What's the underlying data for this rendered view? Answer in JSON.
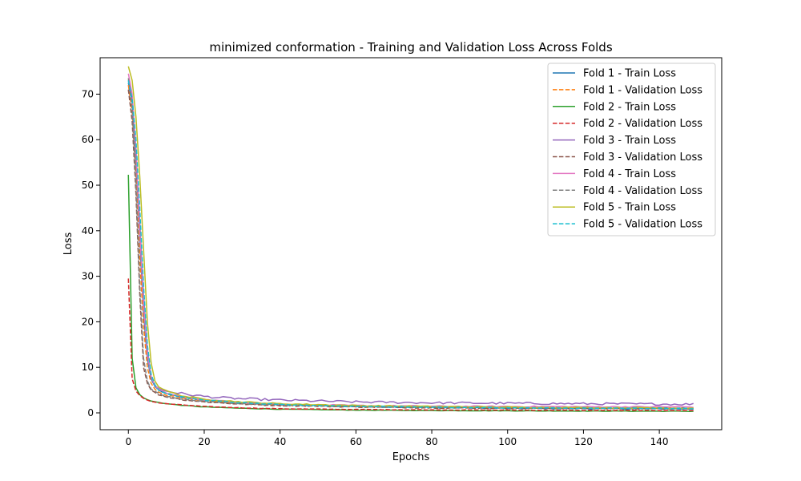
{
  "chart_data": {
    "type": "line",
    "title": "minimized conformation - Training and Validation Loss Across Folds",
    "xlabel": "Epochs",
    "ylabel": "Loss",
    "xlim": [
      -7.45,
      156.45
    ],
    "ylim": [
      -3.7,
      78.0
    ],
    "xticks": [
      0,
      20,
      40,
      60,
      80,
      100,
      120,
      140
    ],
    "yticks": [
      0,
      10,
      20,
      30,
      40,
      50,
      60,
      70
    ],
    "grid": false,
    "legend_position": "top-right",
    "epochs": 150,
    "series": [
      {
        "name": "Fold 1 - Train Loss",
        "color": "#1f77b4",
        "dash": false,
        "keypoints": [
          [
            0,
            72.5
          ],
          [
            1,
            68
          ],
          [
            2,
            55
          ],
          [
            3,
            38
          ],
          [
            4,
            22
          ],
          [
            5,
            12
          ],
          [
            6,
            7.5
          ],
          [
            7,
            5.8
          ],
          [
            8,
            5.0
          ],
          [
            10,
            4.2
          ],
          [
            15,
            3.3
          ],
          [
            20,
            2.8
          ],
          [
            30,
            2.2
          ],
          [
            40,
            1.8
          ],
          [
            60,
            1.4
          ],
          [
            80,
            1.2
          ],
          [
            100,
            1.0
          ],
          [
            120,
            0.95
          ],
          [
            149,
            0.85
          ]
        ],
        "noise": 0.12
      },
      {
        "name": "Fold 1 - Validation Loss",
        "color": "#ff7f0e",
        "dash": true,
        "keypoints": [
          [
            0,
            72
          ],
          [
            1,
            66
          ],
          [
            2,
            52
          ],
          [
            3,
            34
          ],
          [
            4,
            19
          ],
          [
            5,
            10
          ],
          [
            6,
            6.5
          ],
          [
            7,
            5.2
          ],
          [
            8,
            4.6
          ],
          [
            10,
            3.9
          ],
          [
            15,
            3.1
          ],
          [
            20,
            2.7
          ],
          [
            30,
            2.1
          ],
          [
            40,
            1.8
          ],
          [
            60,
            1.5
          ],
          [
            80,
            1.3
          ],
          [
            100,
            1.2
          ],
          [
            120,
            1.1
          ],
          [
            149,
            1.0
          ]
        ],
        "noise": 0.1
      },
      {
        "name": "Fold 2 - Train Loss",
        "color": "#2ca02c",
        "dash": false,
        "keypoints": [
          [
            0,
            52.3
          ],
          [
            1,
            12
          ],
          [
            2,
            5.5
          ],
          [
            3,
            4.0
          ],
          [
            4,
            3.3
          ],
          [
            5,
            2.9
          ],
          [
            6,
            2.6
          ],
          [
            8,
            2.3
          ],
          [
            10,
            2.0
          ],
          [
            15,
            1.6
          ],
          [
            20,
            1.3
          ],
          [
            30,
            1.0
          ],
          [
            40,
            0.8
          ],
          [
            60,
            0.6
          ],
          [
            80,
            0.5
          ],
          [
            100,
            0.45
          ],
          [
            120,
            0.4
          ],
          [
            149,
            0.35
          ]
        ],
        "noise": 0.05
      },
      {
        "name": "Fold 2 - Validation Loss",
        "color": "#d62728",
        "dash": true,
        "keypoints": [
          [
            0,
            29.5
          ],
          [
            1,
            7.5
          ],
          [
            2,
            4.8
          ],
          [
            3,
            3.8
          ],
          [
            4,
            3.2
          ],
          [
            5,
            2.8
          ],
          [
            6,
            2.5
          ],
          [
            8,
            2.2
          ],
          [
            10,
            2.0
          ],
          [
            15,
            1.7
          ],
          [
            20,
            1.4
          ],
          [
            30,
            1.1
          ],
          [
            40,
            0.9
          ],
          [
            60,
            0.75
          ],
          [
            80,
            0.65
          ],
          [
            100,
            0.6
          ],
          [
            120,
            0.55
          ],
          [
            149,
            0.5
          ]
        ],
        "noise": 0.05
      },
      {
        "name": "Fold 3 - Train Loss",
        "color": "#9467bd",
        "dash": false,
        "keypoints": [
          [
            0,
            73
          ],
          [
            1,
            69
          ],
          [
            2,
            58
          ],
          [
            3,
            42
          ],
          [
            4,
            26
          ],
          [
            5,
            14
          ],
          [
            6,
            8
          ],
          [
            7,
            6
          ],
          [
            8,
            5.3
          ],
          [
            10,
            4.8
          ],
          [
            15,
            4.1
          ],
          [
            20,
            3.6
          ],
          [
            25,
            3.3
          ],
          [
            30,
            3.1
          ],
          [
            40,
            2.8
          ],
          [
            60,
            2.4
          ],
          [
            80,
            2.2
          ],
          [
            100,
            2.1
          ],
          [
            120,
            2.0
          ],
          [
            149,
            1.9
          ]
        ],
        "noise": 0.22
      },
      {
        "name": "Fold 3 - Validation Loss",
        "color": "#8c564b",
        "dash": true,
        "keypoints": [
          [
            0,
            71
          ],
          [
            1,
            64
          ],
          [
            2,
            48
          ],
          [
            3,
            26
          ],
          [
            4,
            10
          ],
          [
            5,
            6.5
          ],
          [
            6,
            5.0
          ],
          [
            8,
            4.0
          ],
          [
            10,
            3.5
          ],
          [
            15,
            2.8
          ],
          [
            20,
            2.4
          ],
          [
            30,
            1.9
          ],
          [
            40,
            1.6
          ],
          [
            60,
            1.3
          ],
          [
            80,
            1.1
          ],
          [
            100,
            1.0
          ],
          [
            120,
            0.95
          ],
          [
            149,
            0.9
          ]
        ],
        "noise": 0.1
      },
      {
        "name": "Fold 4 - Train Loss",
        "color": "#e377c2",
        "dash": false,
        "keypoints": [
          [
            0,
            74.5
          ],
          [
            1,
            70
          ],
          [
            2,
            58
          ],
          [
            3,
            40
          ],
          [
            4,
            24
          ],
          [
            5,
            13
          ],
          [
            6,
            8
          ],
          [
            7,
            6
          ],
          [
            8,
            5.2
          ],
          [
            10,
            4.3
          ],
          [
            15,
            3.4
          ],
          [
            20,
            2.9
          ],
          [
            30,
            2.3
          ],
          [
            40,
            1.9
          ],
          [
            60,
            1.6
          ],
          [
            80,
            1.45
          ],
          [
            100,
            1.4
          ],
          [
            120,
            1.35
          ],
          [
            149,
            1.3
          ]
        ],
        "noise": 0.12
      },
      {
        "name": "Fold 4 - Validation Loss",
        "color": "#7f7f7f",
        "dash": true,
        "keypoints": [
          [
            0,
            73.5
          ],
          [
            1,
            67
          ],
          [
            2,
            50
          ],
          [
            3,
            28
          ],
          [
            4,
            12
          ],
          [
            5,
            7
          ],
          [
            6,
            5.2
          ],
          [
            8,
            4.2
          ],
          [
            10,
            3.6
          ],
          [
            15,
            2.9
          ],
          [
            20,
            2.5
          ],
          [
            30,
            2.0
          ],
          [
            40,
            1.7
          ],
          [
            60,
            1.4
          ],
          [
            80,
            1.25
          ],
          [
            100,
            1.15
          ],
          [
            120,
            1.1
          ],
          [
            149,
            1.05
          ]
        ],
        "noise": 0.1
      },
      {
        "name": "Fold 5 - Train Loss",
        "color": "#bcbd22",
        "dash": false,
        "keypoints": [
          [
            0,
            76.1
          ],
          [
            1,
            73
          ],
          [
            2,
            65
          ],
          [
            3,
            52
          ],
          [
            4,
            36
          ],
          [
            5,
            20
          ],
          [
            6,
            11
          ],
          [
            7,
            7
          ],
          [
            8,
            5.8
          ],
          [
            10,
            4.8
          ],
          [
            15,
            3.6
          ],
          [
            20,
            3.0
          ],
          [
            30,
            2.4
          ],
          [
            40,
            2.0
          ],
          [
            60,
            1.6
          ],
          [
            80,
            1.4
          ],
          [
            100,
            1.25
          ],
          [
            120,
            1.15
          ],
          [
            149,
            1.05
          ]
        ],
        "noise": 0.12
      },
      {
        "name": "Fold 5 - Validation Loss",
        "color": "#17becf",
        "dash": true,
        "keypoints": [
          [
            0,
            73
          ],
          [
            1,
            69
          ],
          [
            2,
            60
          ],
          [
            3,
            45
          ],
          [
            4,
            28
          ],
          [
            5,
            15
          ],
          [
            6,
            8.5
          ],
          [
            7,
            6.2
          ],
          [
            8,
            5.0
          ],
          [
            10,
            4.2
          ],
          [
            15,
            3.3
          ],
          [
            20,
            2.8
          ],
          [
            30,
            2.2
          ],
          [
            40,
            1.8
          ],
          [
            60,
            1.45
          ],
          [
            80,
            1.25
          ],
          [
            100,
            1.1
          ],
          [
            120,
            1.0
          ],
          [
            149,
            0.95
          ]
        ],
        "noise": 0.1
      }
    ]
  }
}
